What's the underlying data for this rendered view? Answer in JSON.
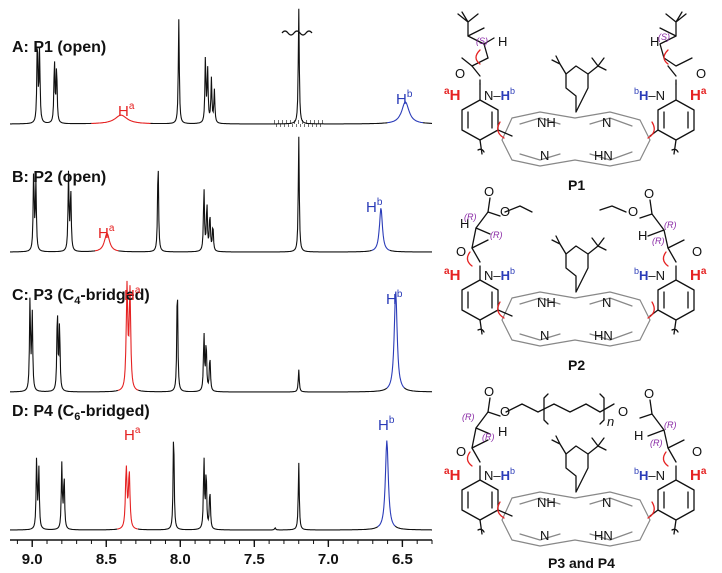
{
  "chart_data": {
    "type": "line",
    "xlabel": "",
    "ylabel": "",
    "xlim": [
      9.15,
      6.3
    ],
    "xticks": [
      "9.0",
      "8.5",
      "8.0",
      "7.5",
      "7.0",
      "6.5"
    ],
    "xtick_values": [
      9.0,
      8.5,
      8.0,
      7.5,
      7.0,
      6.5
    ],
    "grid": false,
    "panels": [
      {
        "label": "A: P1 (open)",
        "ha_label": "H",
        "hb_label": "H",
        "sup_a": "a",
        "sup_b": "b",
        "peaks": [
          {
            "x": 8.965,
            "h": 0.78
          },
          {
            "x": 8.95,
            "h": 0.65
          },
          {
            "x": 8.85,
            "h": 0.58
          },
          {
            "x": 8.835,
            "h": 0.52
          },
          {
            "x": 8.4,
            "h": 0.08,
            "w": 0.05,
            "color": "ha"
          },
          {
            "x": 8.01,
            "h": 0.95
          },
          {
            "x": 7.83,
            "h": 0.6
          },
          {
            "x": 7.815,
            "h": 0.48
          },
          {
            "x": 7.79,
            "h": 0.4
          },
          {
            "x": 7.77,
            "h": 0.3
          },
          {
            "x": 7.2,
            "h": 1.05,
            "truncated": true
          },
          {
            "x": 6.48,
            "h": 0.2,
            "w": 0.03,
            "color": "hb"
          }
        ]
      },
      {
        "label": "B: P2 (open)",
        "ha_label": "H",
        "hb_label": "H",
        "sup_a": "a",
        "sup_b": "b",
        "peaks": [
          {
            "x": 8.99,
            "h": 0.74
          },
          {
            "x": 8.975,
            "h": 0.62
          },
          {
            "x": 8.755,
            "h": 0.7
          },
          {
            "x": 8.74,
            "h": 0.56
          },
          {
            "x": 8.495,
            "h": 0.17,
            "w": 0.02,
            "color": "ha"
          },
          {
            "x": 8.15,
            "h": 0.85
          },
          {
            "x": 7.84,
            "h": 0.58
          },
          {
            "x": 7.82,
            "h": 0.44
          },
          {
            "x": 7.8,
            "h": 0.34
          },
          {
            "x": 7.78,
            "h": 0.24
          },
          {
            "x": 7.2,
            "h": 1.05,
            "truncated": true
          },
          {
            "x": 6.645,
            "h": 0.4,
            "w": 0.012,
            "color": "hb"
          }
        ]
      },
      {
        "label": "C: P3 (C",
        "label_sub": "4",
        "label_tail": "-bridged)",
        "ha_label": "H",
        "hb_label": "H",
        "sup_a": "a",
        "sup_b": "b",
        "peaks": [
          {
            "x": 9.015,
            "h": 0.82
          },
          {
            "x": 9.0,
            "h": 0.7
          },
          {
            "x": 8.83,
            "h": 0.74
          },
          {
            "x": 8.815,
            "h": 0.6
          },
          {
            "x": 8.36,
            "h": 0.92,
            "w": 0.006,
            "color": "ha"
          },
          {
            "x": 8.34,
            "h": 0.88,
            "w": 0.006,
            "color": "ha"
          },
          {
            "x": 8.02,
            "h": 1.0
          },
          {
            "x": 7.84,
            "h": 0.52
          },
          {
            "x": 7.825,
            "h": 0.44
          },
          {
            "x": 7.8,
            "h": 0.32
          },
          {
            "x": 7.2,
            "h": 0.2
          },
          {
            "x": 6.545,
            "h": 0.9,
            "w": 0.012,
            "color": "hb"
          }
        ]
      },
      {
        "label": "D: P4 (C",
        "label_sub": "6",
        "label_tail": "-bridged)",
        "ha_label": "H",
        "hb_label": "H",
        "sup_a": "a",
        "sup_b": "b",
        "peaks": [
          {
            "x": 8.97,
            "h": 0.64
          },
          {
            "x": 8.955,
            "h": 0.54
          },
          {
            "x": 8.8,
            "h": 0.58
          },
          {
            "x": 8.785,
            "h": 0.48
          },
          {
            "x": 8.365,
            "h": 0.54,
            "w": 0.006,
            "color": "ha"
          },
          {
            "x": 8.345,
            "h": 0.5,
            "w": 0.006,
            "color": "ha"
          },
          {
            "x": 8.045,
            "h": 0.92
          },
          {
            "x": 7.84,
            "h": 0.64
          },
          {
            "x": 7.825,
            "h": 0.52
          },
          {
            "x": 7.8,
            "h": 0.36
          },
          {
            "x": 7.36,
            "h": 0.02
          },
          {
            "x": 7.2,
            "h": 0.6
          },
          {
            "x": 6.605,
            "h": 0.8,
            "w": 0.012,
            "color": "hb"
          }
        ]
      }
    ],
    "colors": {
      "ha": "#e52222",
      "hb": "#2b3cb8",
      "spectrum": "#111111",
      "ha_base": "#f07a7a",
      "hb_base": "#7a88d6"
    }
  },
  "structures": [
    {
      "caption": "P1",
      "ha_text": "H",
      "ha_sup": "a",
      "nh_left": "N",
      "nh_left_h": "H",
      "hb_text": "H",
      "hb_sup": "b",
      "hb_right_sup": "b",
      "hb_right": "H",
      "nh_right": "N",
      "ha_right": "H",
      "ha_right_sup": "a",
      "cp_h_left": "H",
      "cp_h_right": "H",
      "stereo_left": "(S)",
      "stereo_right": "(S)",
      "o_left": "O",
      "o_right": "O",
      "porph_nh_top": "NH",
      "porph_n_top": "N",
      "porph_n_bottom": "N",
      "porph_hn_bottom": "HN"
    },
    {
      "caption": "P2",
      "ha_text": "H",
      "ha_sup": "a",
      "nh_left": "N",
      "nh_left_h": "H",
      "hb_text": "H",
      "hb_sup": "b",
      "hb_right_sup": "b",
      "hb_right": "H",
      "nh_right": "N",
      "ha_right": "H",
      "ha_right_sup": "a",
      "cp_h_left": "H",
      "cp_h_right": "H",
      "stereo_l1": "(R)",
      "stereo_l2": "(R)",
      "stereo_r1": "(R)",
      "stereo_r2": "(R)",
      "o_left": "O",
      "o_right": "O",
      "ester_o1": "O",
      "ester_o2": "O",
      "ester_o3": "O",
      "ester_o4": "O",
      "porph_nh_top": "NH",
      "porph_n_top": "N",
      "porph_n_bottom": "N",
      "porph_hn_bottom": "HN"
    },
    {
      "caption": "P3 and P4",
      "ha_text": "H",
      "ha_sup": "a",
      "nh_left": "N",
      "nh_left_h": "H",
      "hb_text": "H",
      "hb_sup": "b",
      "hb_right_sup": "b",
      "hb_right": "H",
      "nh_right": "N",
      "ha_right": "H",
      "ha_right_sup": "a",
      "cp_h_left": "H",
      "cp_h_right": "H",
      "stereo_l1": "(R)",
      "stereo_l2": "(R)",
      "stereo_r1": "(R)",
      "stereo_r2": "(R)",
      "o_left": "O",
      "o_right": "O",
      "ester_o1": "O",
      "ester_o2": "O",
      "ester_o3": "O",
      "ester_o4": "O",
      "chain_n": "n",
      "porph_nh_top": "NH",
      "porph_n_top": "N",
      "porph_n_bottom": "N",
      "porph_hn_bottom": "HN"
    }
  ]
}
